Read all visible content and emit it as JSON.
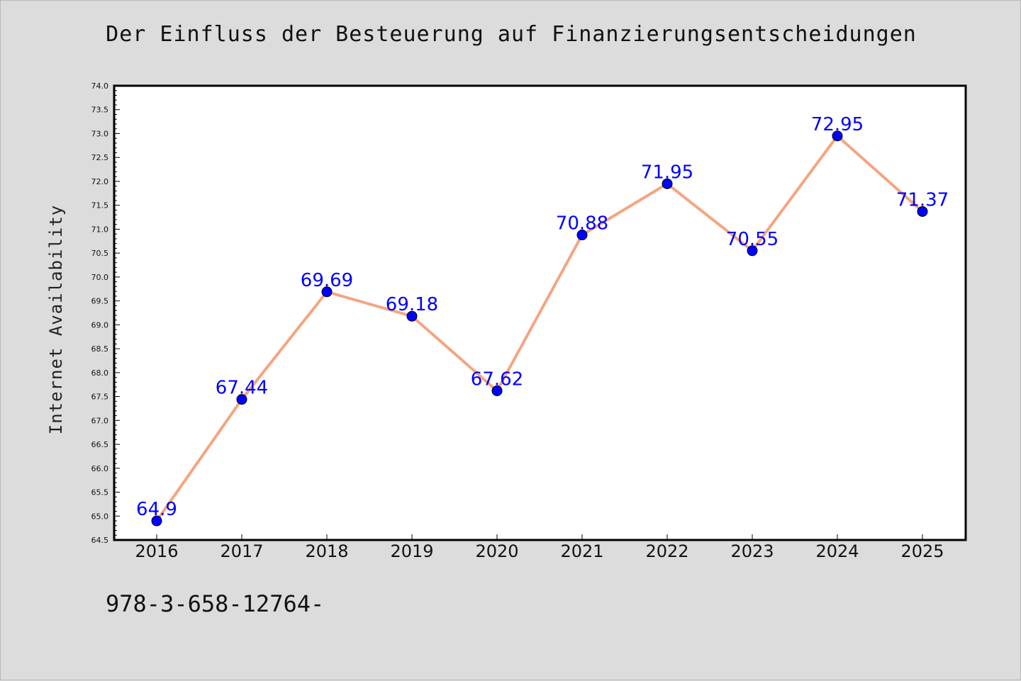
{
  "chart_data": {
    "type": "line",
    "title": "Der Einfluss der Besteuerung auf Finanzierungsentscheidungen",
    "xlabel": "",
    "ylabel": "Internet Availability",
    "x": [
      "2016",
      "2017",
      "2018",
      "2019",
      "2020",
      "2021",
      "2022",
      "2023",
      "2024",
      "2025"
    ],
    "series": [
      {
        "values": [
          64.9,
          67.44,
          69.69,
          69.18,
          67.62,
          70.88,
          71.95,
          70.55,
          72.95,
          71.37
        ],
        "labels": [
          "64.9",
          "67.44",
          "69.69",
          "69.18",
          "67.62",
          "70.88",
          "71.95",
          "70.55",
          "72.95",
          "71.37"
        ],
        "line_color": "#f4a582",
        "marker_color": "#0000ff"
      }
    ],
    "ylim": [
      64.5,
      74.0
    ],
    "yticks": [
      "64.5",
      "65.0",
      "65.5",
      "66.0",
      "66.5",
      "67.0",
      "67.5",
      "68.0",
      "68.5",
      "69.0",
      "69.5",
      "70.0",
      "70.5",
      "71.0",
      "71.5",
      "72.0",
      "72.5",
      "73.0",
      "73.5",
      "74.0"
    ],
    "grid": false,
    "label_color": "#0000ff"
  },
  "footer_text": "978-3-658-12764-"
}
